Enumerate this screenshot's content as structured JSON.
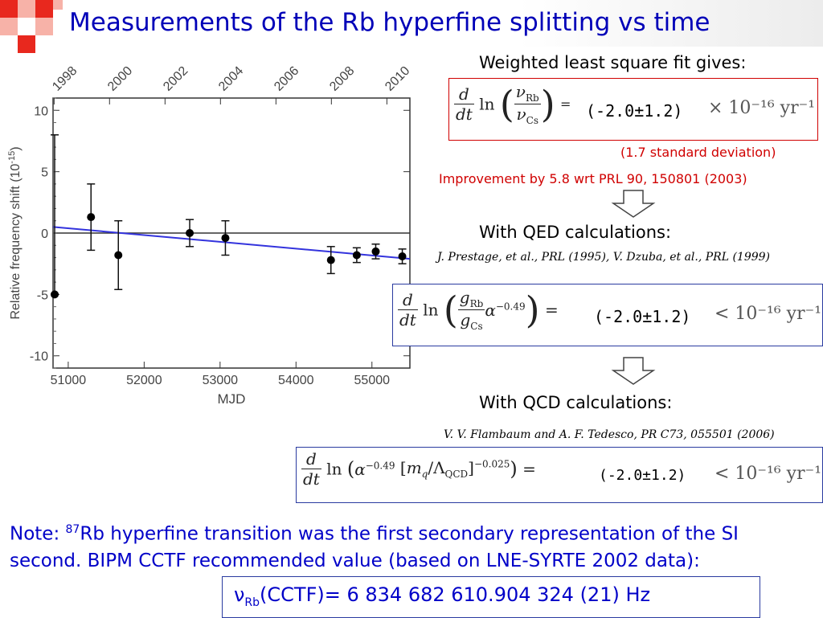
{
  "slide": {
    "title": "Measurements of the Rb hyperfine splitting vs time"
  },
  "fit": {
    "header": "Weighted least square fit gives:",
    "eq1_value": "(-2.0±1.2)",
    "eq1_unit": "× 10⁻¹⁶ yr⁻¹",
    "std_dev": "(1.7 standard deviation)",
    "improvement": "Improvement by 5.8 wrt PRL 90, 150801 (2003)"
  },
  "qed": {
    "header": "With QED calculations:",
    "reference": "J. Prestage, et al., PRL (1995), V. Dzuba, et al., PRL (1999)",
    "eq_value": "(-2.0±1.2)",
    "eq_unit": "< 10⁻¹⁶ yr⁻¹"
  },
  "qcd": {
    "header": "With QCD calculations:",
    "reference": "V. V. Flambaum and A. F. Tedesco, PR C73, 055501 (2006)",
    "eq_value": "(-2.0±1.2)",
    "eq_unit": "< 10⁻¹⁶ yr⁻¹"
  },
  "note": {
    "prefix": "Note: ",
    "superscript": "87",
    "text": "Rb hyperfine transition was the first secondary representation of the SI second. BIPM CCTF recommended value (based on LNE-SYRTE 2002 data):"
  },
  "cctf": {
    "symbol": "ν",
    "subscript": "Rb",
    "text": "(CCTF)= 6 834 682 610.904 324 (21) Hz"
  },
  "colors": {
    "title_blue": "#0000b8",
    "note_blue": "#0000c8",
    "red": "#d00000",
    "fit_line": "#3333dd",
    "deco_red": "#e8281e"
  },
  "chart_data": {
    "type": "scatter",
    "xlabel": "MJD",
    "ylabel": "Relative frequency shift (10",
    "ylabel_sup": "-15",
    "ylabel_end": ")",
    "xlim": [
      50800,
      55500
    ],
    "ylim": [
      -11,
      11
    ],
    "x_ticks": [
      51000,
      52000,
      53000,
      54000,
      55000
    ],
    "x_tick_labels": [
      "51000",
      "52000",
      "53000",
      "54000",
      "55000"
    ],
    "y_ticks": [
      10,
      5,
      0,
      -5,
      -10
    ],
    "y_tick_labels": [
      "10",
      "5",
      "0",
      "-5",
      "-10"
    ],
    "top_axis_labels": [
      "1998",
      "2000",
      "2002",
      "2004",
      "2006",
      "2008",
      "2010"
    ],
    "top_axis_mjd": [
      50814,
      51544,
      52275,
      53005,
      53736,
      54466,
      55197
    ],
    "grid": false,
    "points": [
      {
        "x": 50800,
        "y": -5.0,
        "err_up": 13.0,
        "err_down": 0
      },
      {
        "x": 51300,
        "y": 1.3,
        "err_up": 2.7,
        "err_down": 2.7
      },
      {
        "x": 51660,
        "y": -1.8,
        "err_up": 2.8,
        "err_down": 2.8
      },
      {
        "x": 52600,
        "y": 0.0,
        "err_up": 1.1,
        "err_down": 1.1
      },
      {
        "x": 53070,
        "y": -0.4,
        "err_up": 1.4,
        "err_down": 1.4
      },
      {
        "x": 54460,
        "y": -2.2,
        "err_up": 1.1,
        "err_down": 1.1
      },
      {
        "x": 54800,
        "y": -1.8,
        "err_up": 0.6,
        "err_down": 0.6
      },
      {
        "x": 55050,
        "y": -1.5,
        "err_up": 0.6,
        "err_down": 0.6
      },
      {
        "x": 55400,
        "y": -1.9,
        "err_up": 0.6,
        "err_down": 0.6
      }
    ],
    "fit_line": {
      "x": [
        50800,
        55500
      ],
      "y": [
        0.5,
        -2.1
      ]
    },
    "zero_line": 0
  }
}
